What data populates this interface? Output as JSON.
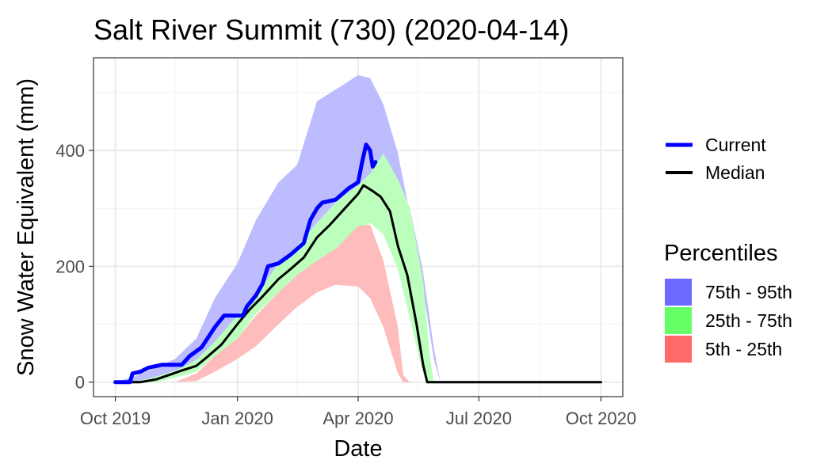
{
  "chart_data": {
    "type": "area",
    "title": "Salt River Summit (730) (2020-04-14)",
    "xlabel": "Date",
    "ylabel": "Snow Water Equivalent (mm)",
    "x_range": [
      "2019-10-01",
      "2020-10-01"
    ],
    "ylim": [
      -25,
      560
    ],
    "x_ticks": [
      {
        "date": "2019-10-01",
        "label": "Oct 2019"
      },
      {
        "date": "2020-01-01",
        "label": "Jan 2020"
      },
      {
        "date": "2020-04-01",
        "label": "Apr 2020"
      },
      {
        "date": "2020-07-01",
        "label": "Jul 2020"
      },
      {
        "date": "2020-10-01",
        "label": "Oct 2020"
      }
    ],
    "x_minor_ticks": [
      "2019-11-15",
      "2020-02-15",
      "2020-05-16",
      "2020-08-16"
    ],
    "y_ticks": [
      0,
      200,
      400
    ],
    "y_minor_ticks": [
      100,
      300,
      500
    ],
    "grid": true,
    "legend": {
      "placement": "right",
      "lines": [
        {
          "name": "Current",
          "color": "#0000ff"
        },
        {
          "name": "Median",
          "color": "#000000"
        }
      ],
      "fills_title": "Percentiles",
      "fills": [
        {
          "name": "75th - 95th",
          "color": "#6a6aff"
        },
        {
          "name": "25th - 75th",
          "color": "#66ff66"
        },
        {
          "name": "5th - 25th",
          "color": "#ff6a6a"
        }
      ]
    },
    "bands": [
      {
        "name": "75th - 95th",
        "color": "#bcbcff",
        "points": [
          [
            "2019-10-01",
            0,
            0
          ],
          [
            "2019-10-18",
            0,
            12
          ],
          [
            "2019-11-01",
            10,
            25
          ],
          [
            "2019-11-15",
            18,
            40
          ],
          [
            "2019-12-01",
            30,
            75
          ],
          [
            "2019-12-15",
            58,
            145
          ],
          [
            "2020-01-01",
            105,
            205
          ],
          [
            "2020-01-15",
            150,
            280
          ],
          [
            "2020-02-01",
            205,
            345
          ],
          [
            "2020-02-15",
            235,
            375
          ],
          [
            "2020-03-01",
            275,
            485
          ],
          [
            "2020-03-15",
            310,
            505
          ],
          [
            "2020-04-01",
            340,
            530
          ],
          [
            "2020-04-10",
            360,
            525
          ],
          [
            "2020-04-20",
            375,
            480
          ],
          [
            "2020-05-01",
            350,
            395
          ],
          [
            "2020-05-10",
            300,
            290
          ],
          [
            "2020-05-20",
            190,
            160
          ],
          [
            "2020-05-28",
            60,
            40
          ],
          [
            "2020-06-02",
            0,
            0
          ]
        ]
      },
      {
        "name": "25th - 75th",
        "color": "#bcffbc",
        "points": [
          [
            "2019-10-01",
            0,
            0
          ],
          [
            "2019-10-15",
            0,
            0
          ],
          [
            "2019-11-01",
            0,
            10
          ],
          [
            "2019-11-15",
            8,
            20
          ],
          [
            "2019-12-01",
            18,
            38
          ],
          [
            "2019-12-15",
            45,
            70
          ],
          [
            "2020-01-01",
            75,
            115
          ],
          [
            "2020-01-15",
            118,
            150
          ],
          [
            "2020-02-01",
            155,
            205
          ],
          [
            "2020-02-15",
            185,
            235
          ],
          [
            "2020-03-01",
            210,
            275
          ],
          [
            "2020-03-15",
            230,
            310
          ],
          [
            "2020-04-01",
            265,
            340
          ],
          [
            "2020-04-10",
            275,
            360
          ],
          [
            "2020-04-20",
            255,
            395
          ],
          [
            "2020-05-01",
            195,
            350
          ],
          [
            "2020-05-10",
            110,
            300
          ],
          [
            "2020-05-20",
            15,
            175
          ],
          [
            "2020-05-25",
            0,
            45
          ],
          [
            "2020-05-28",
            0,
            0
          ]
        ]
      },
      {
        "name": "5th - 25th",
        "color": "#ffbcbc",
        "points": [
          [
            "2019-10-01",
            0,
            0
          ],
          [
            "2019-11-15",
            0,
            0
          ],
          [
            "2019-12-01",
            2,
            15
          ],
          [
            "2019-12-15",
            18,
            45
          ],
          [
            "2020-01-01",
            40,
            75
          ],
          [
            "2020-01-15",
            62,
            115
          ],
          [
            "2020-02-01",
            100,
            155
          ],
          [
            "2020-02-15",
            130,
            185
          ],
          [
            "2020-03-01",
            155,
            210
          ],
          [
            "2020-03-15",
            168,
            230
          ],
          [
            "2020-04-01",
            165,
            270
          ],
          [
            "2020-04-10",
            145,
            272
          ],
          [
            "2020-04-20",
            95,
            210
          ],
          [
            "2020-05-01",
            15,
            95
          ],
          [
            "2020-05-05",
            0,
            12
          ],
          [
            "2020-05-10",
            0,
            0
          ]
        ]
      }
    ],
    "series": [
      {
        "name": "Median",
        "color": "#000000",
        "points": [
          [
            "2019-10-01",
            0
          ],
          [
            "2019-10-20",
            0
          ],
          [
            "2019-11-01",
            5
          ],
          [
            "2019-11-10",
            12
          ],
          [
            "2019-11-20",
            20
          ],
          [
            "2019-12-01",
            28
          ],
          [
            "2019-12-10",
            45
          ],
          [
            "2019-12-20",
            65
          ],
          [
            "2020-01-01",
            100
          ],
          [
            "2020-01-10",
            125
          ],
          [
            "2020-01-20",
            148
          ],
          [
            "2020-02-01",
            178
          ],
          [
            "2020-02-10",
            195
          ],
          [
            "2020-02-20",
            215
          ],
          [
            "2020-03-01",
            250
          ],
          [
            "2020-03-10",
            270
          ],
          [
            "2020-03-20",
            295
          ],
          [
            "2020-04-01",
            325
          ],
          [
            "2020-04-05",
            340
          ],
          [
            "2020-04-12",
            330
          ],
          [
            "2020-04-18",
            320
          ],
          [
            "2020-04-25",
            295
          ],
          [
            "2020-05-01",
            235
          ],
          [
            "2020-05-08",
            185
          ],
          [
            "2020-05-15",
            100
          ],
          [
            "2020-05-20",
            30
          ],
          [
            "2020-05-23",
            0
          ],
          [
            "2020-10-01",
            0
          ]
        ]
      },
      {
        "name": "Current",
        "color": "#0000ff",
        "points": [
          [
            "2019-10-01",
            0
          ],
          [
            "2019-10-12",
            0
          ],
          [
            "2019-10-14",
            15
          ],
          [
            "2019-10-20",
            18
          ],
          [
            "2019-10-26",
            25
          ],
          [
            "2019-11-05",
            30
          ],
          [
            "2019-11-20",
            30
          ],
          [
            "2019-11-26",
            45
          ],
          [
            "2019-12-05",
            60
          ],
          [
            "2019-12-15",
            95
          ],
          [
            "2019-12-22",
            115
          ],
          [
            "2020-01-05",
            115
          ],
          [
            "2020-01-08",
            130
          ],
          [
            "2020-01-15",
            150
          ],
          [
            "2020-01-20",
            170
          ],
          [
            "2020-01-24",
            200
          ],
          [
            "2020-02-01",
            205
          ],
          [
            "2020-02-10",
            220
          ],
          [
            "2020-02-20",
            240
          ],
          [
            "2020-02-25",
            280
          ],
          [
            "2020-03-01",
            300
          ],
          [
            "2020-03-05",
            310
          ],
          [
            "2020-03-15",
            315
          ],
          [
            "2020-03-25",
            335
          ],
          [
            "2020-04-01",
            345
          ],
          [
            "2020-04-04",
            380
          ],
          [
            "2020-04-07",
            410
          ],
          [
            "2020-04-10",
            400
          ],
          [
            "2020-04-12",
            372
          ],
          [
            "2020-04-14",
            380
          ]
        ]
      }
    ]
  }
}
